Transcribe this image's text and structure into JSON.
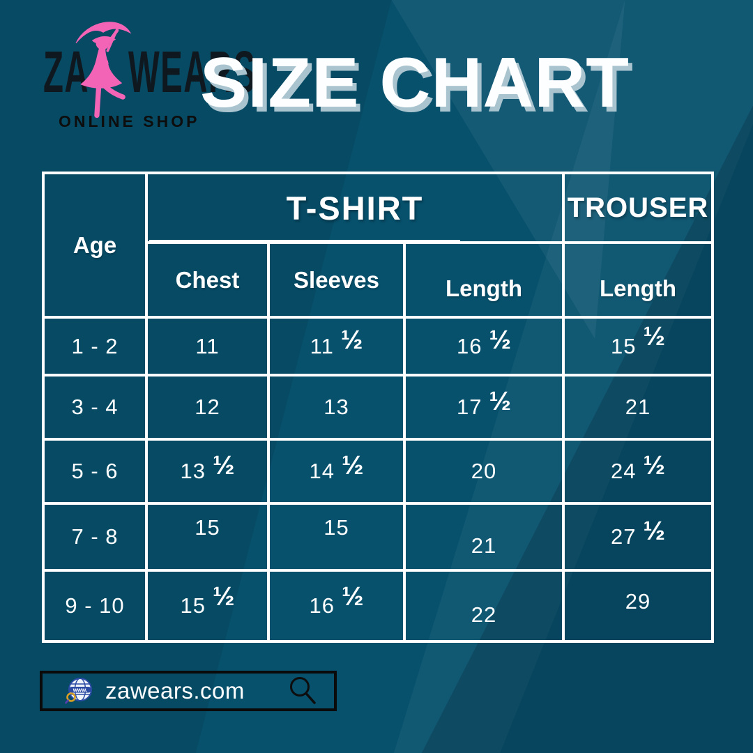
{
  "title": "SIZE CHART",
  "brand": {
    "word_left": "ZA",
    "word_right": "WEARS",
    "tagline": "ONLINE SHOP",
    "figure_icon": "pink-lady-with-umbrella-icon"
  },
  "table": {
    "age_header": "Age",
    "group_headers": [
      {
        "label": "T-SHIRT"
      },
      {
        "label": "TROUSER"
      }
    ],
    "sub_headers": [
      "Chest",
      "Sleeves",
      "Length",
      "Length"
    ]
  },
  "chart_data": {
    "type": "table",
    "title": "SIZE CHART",
    "column_groups": [
      {
        "label": "T-SHIRT",
        "columns": [
          "Chest",
          "Sleeves",
          "Length"
        ]
      },
      {
        "label": "TROUSER",
        "columns": [
          "Length"
        ]
      }
    ],
    "columns": [
      "Age",
      "T-Shirt Chest",
      "T-Shirt Sleeves",
      "T-Shirt Length",
      "Trouser Length"
    ],
    "rows": [
      [
        "1 - 2",
        11,
        11.5,
        16.5,
        15.5
      ],
      [
        "3 - 4",
        12,
        13,
        17.5,
        21
      ],
      [
        "5 - 6",
        13.5,
        14.5,
        20,
        24.5
      ],
      [
        "7 - 8",
        15,
        15,
        21,
        27.5
      ],
      [
        "9 - 10",
        15.5,
        16.5,
        22,
        29
      ]
    ]
  },
  "footer": {
    "url": "zawears.com",
    "icons": [
      "globe-icon",
      "search-icon"
    ]
  },
  "colors": {
    "background_teal": "#07516D",
    "dark_corner_teal": "#04485F",
    "light_band_teal": "#15678A",
    "accent_pink": "#F464B6",
    "table_lines": "#FFFFFF",
    "title_shadow": "#A9C4CF",
    "bar_border": "#0A0A0A",
    "logo_text": "#10181F"
  }
}
